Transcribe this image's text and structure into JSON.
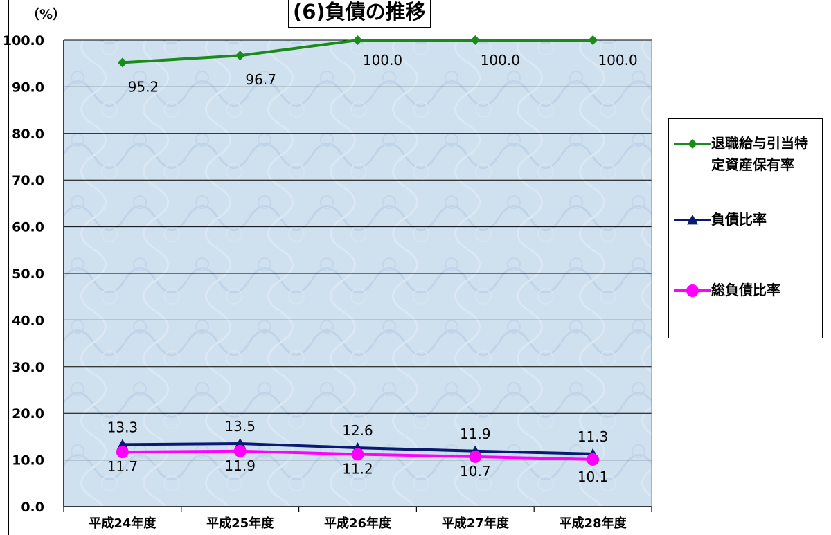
{
  "chart_data": {
    "type": "line",
    "title": "(6)負債の推移",
    "y_unit": "（%）",
    "categories": [
      "平成24年度",
      "平成25年度",
      "平成26年度",
      "平成27年度",
      "平成28年度"
    ],
    "ylim": [
      0,
      100
    ],
    "yticks": [
      "0.0",
      "10.0",
      "20.0",
      "30.0",
      "40.0",
      "50.0",
      "60.0",
      "70.0",
      "80.0",
      "90.0",
      "100.0"
    ],
    "grid": true,
    "legend_position": "right",
    "series": [
      {
        "name": "退職給与引当特定資産保有率",
        "values": [
          95.2,
          96.7,
          100.0,
          100.0,
          100.0
        ],
        "labels": [
          "95.2",
          "96.7",
          "100.0",
          "100.0",
          "100.0"
        ],
        "color": "#1a8a1a",
        "marker": "diamond"
      },
      {
        "name": "負債比率",
        "values": [
          13.3,
          13.5,
          12.6,
          11.9,
          11.3
        ],
        "labels": [
          "13.3",
          "13.5",
          "12.6",
          "11.9",
          "11.3"
        ],
        "color": "#0b1a70",
        "marker": "triangle"
      },
      {
        "name": "総負債比率",
        "values": [
          11.7,
          11.9,
          11.2,
          10.7,
          10.1
        ],
        "labels": [
          "11.7",
          "11.9",
          "11.2",
          "10.7",
          "10.1"
        ],
        "color": "#ff00ff",
        "marker": "circle"
      }
    ]
  }
}
